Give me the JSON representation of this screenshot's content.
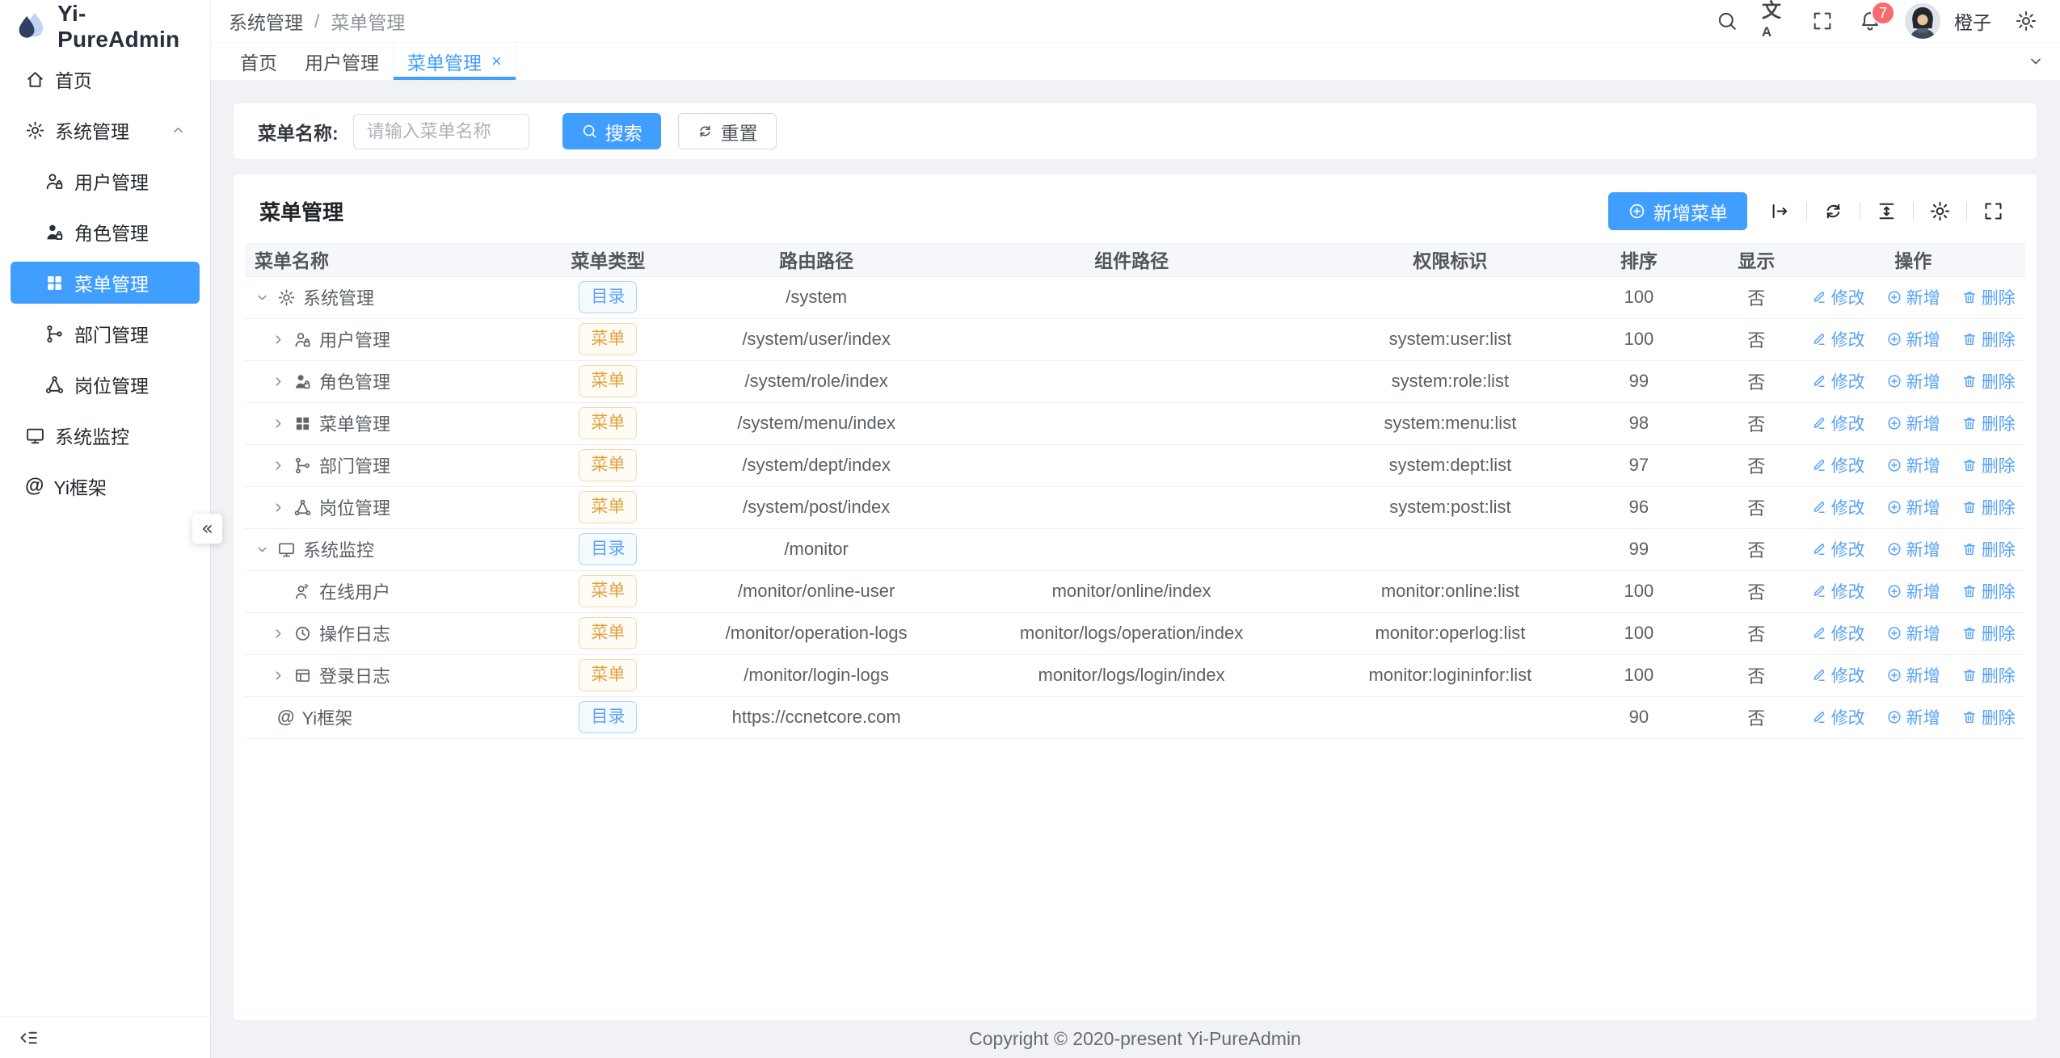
{
  "app": {
    "title": "Yi-PureAdmin"
  },
  "glyphs": {
    "double_left": "«",
    "close": "×"
  },
  "colors": {
    "primary": "#409eff",
    "badge": "#f56c6c",
    "tag_dir": "#409eff",
    "tag_menu": "#e6a23c"
  },
  "sidebar": {
    "items": [
      {
        "key": "home",
        "label": "首页",
        "icon": "home-icon"
      },
      {
        "key": "system-management",
        "label": "系统管理",
        "icon": "gear-icon",
        "expanded": true,
        "children": [
          {
            "key": "user-management",
            "label": "用户管理",
            "icon": "user-icon"
          },
          {
            "key": "role-management",
            "label": "角色管理",
            "icon": "role-icon"
          },
          {
            "key": "menu-management",
            "label": "菜单管理",
            "icon": "menu-grid-icon",
            "active": true
          },
          {
            "key": "dept-management",
            "label": "部门管理",
            "icon": "dept-icon"
          },
          {
            "key": "post-management",
            "label": "岗位管理",
            "icon": "post-icon"
          }
        ]
      },
      {
        "key": "system-monitor",
        "label": "系统监控",
        "icon": "monitor-icon",
        "expanded": false
      },
      {
        "key": "yi-framework",
        "label": "Yi框架",
        "icon": "at-icon"
      }
    ]
  },
  "navbar": {
    "breadcrumb": [
      "系统管理",
      "菜单管理"
    ],
    "breadcrumb_separator": "/",
    "tools": [
      {
        "key": "search",
        "icon": "search-icon"
      },
      {
        "key": "translate",
        "icon": "translate-icon"
      },
      {
        "key": "fullscreen",
        "icon": "fullscreen-icon"
      },
      {
        "key": "notifications",
        "icon": "bell-icon",
        "badge": "7"
      }
    ],
    "user": {
      "name": "橙子"
    }
  },
  "tabbar": {
    "tabs": [
      {
        "key": "home",
        "label": "首页",
        "active": false,
        "closable": false
      },
      {
        "key": "user-management",
        "label": "用户管理",
        "active": false,
        "closable": false
      },
      {
        "key": "menu-management",
        "label": "菜单管理",
        "active": true,
        "closable": true
      }
    ]
  },
  "search": {
    "label": "菜单名称:",
    "placeholder": "请输入菜单名称",
    "value": "",
    "search_label": "搜索",
    "reset_label": "重置"
  },
  "card": {
    "title": "菜单管理",
    "add_label": "新增菜单",
    "tools": [
      "arrow-bar-icon",
      "refresh-icon",
      "density-icon",
      "gear-icon",
      "fullscreen-icon"
    ]
  },
  "table": {
    "columns": [
      "菜单名称",
      "菜单类型",
      "路由路径",
      "组件路径",
      "权限标识",
      "排序",
      "显示",
      "操作"
    ],
    "tag_labels": {
      "dir": "目录",
      "menu": "菜单"
    },
    "actions": {
      "edit": "修改",
      "add": "新增",
      "delete": "删除"
    },
    "rows": [
      {
        "name": "系统管理",
        "icon": "gear-icon",
        "level": 0,
        "arrow": "expanded",
        "type": "dir",
        "route": "/system",
        "component": "",
        "permission": "",
        "sort": "100",
        "visible": "否"
      },
      {
        "name": "用户管理",
        "icon": "user-icon",
        "level": 1,
        "arrow": "collapsed",
        "type": "menu",
        "route": "/system/user/index",
        "component": "",
        "permission": "system:user:list",
        "sort": "100",
        "visible": "否"
      },
      {
        "name": "角色管理",
        "icon": "role-icon",
        "level": 1,
        "arrow": "collapsed",
        "type": "menu",
        "route": "/system/role/index",
        "component": "",
        "permission": "system:role:list",
        "sort": "99",
        "visible": "否"
      },
      {
        "name": "菜单管理",
        "icon": "menu-grid-icon",
        "level": 1,
        "arrow": "collapsed",
        "type": "menu",
        "route": "/system/menu/index",
        "component": "",
        "permission": "system:menu:list",
        "sort": "98",
        "visible": "否"
      },
      {
        "name": "部门管理",
        "icon": "dept-icon",
        "level": 1,
        "arrow": "collapsed",
        "type": "menu",
        "route": "/system/dept/index",
        "component": "",
        "permission": "system:dept:list",
        "sort": "97",
        "visible": "否"
      },
      {
        "name": "岗位管理",
        "icon": "post-icon",
        "level": 1,
        "arrow": "collapsed",
        "type": "menu",
        "route": "/system/post/index",
        "component": "",
        "permission": "system:post:list",
        "sort": "96",
        "visible": "否"
      },
      {
        "name": "系统监控",
        "icon": "monitor-icon",
        "level": 0,
        "arrow": "expanded",
        "type": "dir",
        "route": "/monitor",
        "component": "",
        "permission": "",
        "sort": "99",
        "visible": "否"
      },
      {
        "name": "在线用户",
        "icon": "online-user-icon",
        "level": 1,
        "arrow": "none",
        "type": "menu",
        "route": "/monitor/online-user",
        "component": "monitor/online/index",
        "permission": "monitor:online:list",
        "sort": "100",
        "visible": "否"
      },
      {
        "name": "操作日志",
        "icon": "clock-icon",
        "level": 1,
        "arrow": "collapsed",
        "type": "menu",
        "route": "/monitor/operation-logs",
        "component": "monitor/logs/operation/index",
        "permission": "monitor:operlog:list",
        "sort": "100",
        "visible": "否"
      },
      {
        "name": "登录日志",
        "icon": "login-log-icon",
        "level": 1,
        "arrow": "collapsed",
        "type": "menu",
        "route": "/monitor/login-logs",
        "component": "monitor/logs/login/index",
        "permission": "monitor:logininfor:list",
        "sort": "100",
        "visible": "否"
      },
      {
        "name": "Yi框架",
        "icon": "at-icon",
        "level": 0,
        "arrow": "none",
        "type": "dir",
        "route": "https://ccnetcore.com",
        "component": "",
        "permission": "",
        "sort": "90",
        "visible": "否"
      }
    ]
  },
  "footer": {
    "copyright": "Copyright © 2020-present Yi-PureAdmin"
  }
}
